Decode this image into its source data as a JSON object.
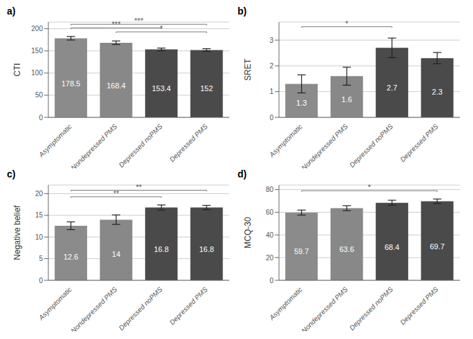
{
  "chart_data": [
    {
      "type": "bar",
      "title": "a)",
      "ylabel": "CTI",
      "categories": [
        "Asymptomatic",
        "Nondepressed PMS",
        "Depressed noPMS",
        "Depressed PMS"
      ],
      "values": [
        178.5,
        168.4,
        153.4,
        152
      ],
      "errors": [
        4,
        4,
        3,
        3
      ],
      "colors": [
        "#8B8B8B",
        "#888888",
        "#4A4A4A",
        "#4A4A4A"
      ],
      "ylim": [
        0,
        215
      ],
      "yticks": [
        0,
        50,
        100,
        150,
        200
      ],
      "grid": true,
      "data_labels": true,
      "annotations": [
        {
          "x1": "Asymptomatic",
          "x2": "Depressed noPMS",
          "y": 202,
          "label": "***"
        },
        {
          "x1": "Asymptomatic",
          "x2": "Depressed PMS",
          "y": 210,
          "label": "***"
        },
        {
          "x1": "Nondepressed PMS",
          "x2": "Depressed PMS",
          "y": 193,
          "label": "*"
        }
      ]
    },
    {
      "type": "bar",
      "title": "b)",
      "ylabel": "SRET",
      "categories": [
        "Asymptomatic",
        "Nondepressed PMS",
        "Depressed noPMS",
        "Depressed PMS"
      ],
      "values": [
        1.3,
        1.6,
        2.7,
        2.3
      ],
      "errors": [
        0.35,
        0.35,
        0.38,
        0.22
      ],
      "colors": [
        "#8B8B8B",
        "#888888",
        "#4A4A4A",
        "#4A4A4A"
      ],
      "ylim": [
        0,
        3.7
      ],
      "yticks": [
        0,
        1,
        2,
        3
      ],
      "grid": true,
      "data_labels": true,
      "annotations": [
        {
          "x1": "Asymptomatic",
          "x2": "Depressed noPMS",
          "y": 3.52,
          "label": "*"
        }
      ]
    },
    {
      "type": "bar",
      "title": "c)",
      "ylabel": "Negative belief",
      "categories": [
        "Asymptomatic",
        "Nondepressed PMS",
        "Depressed noPMS",
        "Depressed PMS"
      ],
      "values": [
        12.6,
        14,
        16.8,
        16.8
      ],
      "errors": [
        0.9,
        1.1,
        0.6,
        0.5
      ],
      "colors": [
        "#8B8B8B",
        "#888888",
        "#4A4A4A",
        "#4A4A4A"
      ],
      "ylim": [
        0,
        22
      ],
      "yticks": [
        0,
        5,
        10,
        15,
        20
      ],
      "grid": true,
      "data_labels": true,
      "annotations": [
        {
          "x1": "Asymptomatic",
          "x2": "Depressed noPMS",
          "y": 19.3,
          "label": "**"
        },
        {
          "x1": "Asymptomatic",
          "x2": "Depressed PMS",
          "y": 20.8,
          "label": "**"
        }
      ]
    },
    {
      "type": "bar",
      "title": "d)",
      "ylabel": "MCQ-30",
      "categories": [
        "Asymptomatic",
        "Nondepressed PMS",
        "Depressed noPMS",
        "Depressed PMS"
      ],
      "values": [
        59.7,
        63.6,
        68.4,
        69.7
      ],
      "errors": [
        2.2,
        2.2,
        2.2,
        2.0
      ],
      "colors": [
        "#8B8B8B",
        "#888888",
        "#4A4A4A",
        "#4A4A4A"
      ],
      "ylim": [
        0,
        84
      ],
      "yticks": [
        0,
        20,
        40,
        60,
        80
      ],
      "grid": true,
      "data_labels": true,
      "annotations": [
        {
          "x1": "Asymptomatic",
          "x2": "Depressed PMS",
          "y": 79,
          "label": "*"
        }
      ]
    }
  ]
}
